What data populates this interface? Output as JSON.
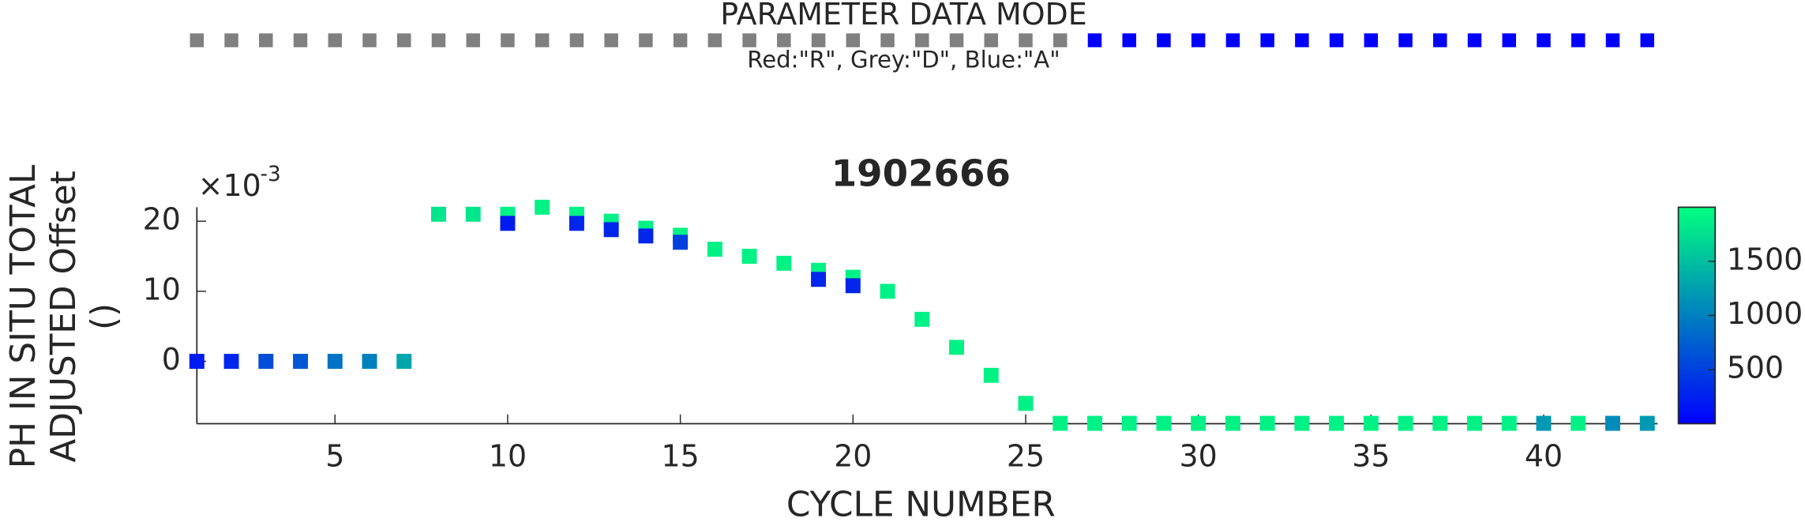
{
  "chart_data": [
    {
      "type": "strip",
      "title": "PARAMETER DATA MODE",
      "subtitle": "Red:\"R\", Grey:\"D\", Blue:\"A\"",
      "x": [
        1,
        2,
        3,
        4,
        5,
        6,
        7,
        8,
        9,
        10,
        11,
        12,
        13,
        14,
        15,
        16,
        17,
        18,
        19,
        20,
        21,
        22,
        23,
        24,
        25,
        26,
        27,
        28,
        29,
        30,
        31,
        32,
        33,
        34,
        35,
        36,
        37,
        38,
        39,
        40,
        41,
        42,
        43
      ],
      "values": [
        "D",
        "D",
        "D",
        "D",
        "D",
        "D",
        "D",
        "D",
        "D",
        "D",
        "D",
        "D",
        "D",
        "D",
        "D",
        "D",
        "D",
        "D",
        "D",
        "D",
        "D",
        "D",
        "D",
        "D",
        "D",
        "D",
        "A",
        "A",
        "A",
        "A",
        "A",
        "A",
        "A",
        "A",
        "A",
        "A",
        "A",
        "A",
        "A",
        "A",
        "A",
        "A",
        "A"
      ],
      "colors": {
        "R": "#ff0000",
        "D": "#808080",
        "A": "#0000ff"
      }
    },
    {
      "type": "scatter",
      "title": "1902666",
      "xlabel": "CYCLE NUMBER",
      "ylabel": [
        "PH IN SITU TOTAL",
        "ADJUSTED Offset",
        "()"
      ],
      "y_scale_label": "×10",
      "y_scale_exponent": "-3",
      "x": [
        1,
        2,
        3,
        4,
        5,
        6,
        7,
        8,
        9,
        10,
        10,
        11,
        12,
        12,
        13,
        13,
        14,
        14,
        15,
        15,
        16,
        17,
        18,
        19,
        19,
        20,
        20,
        21,
        22,
        23,
        24,
        25,
        26,
        27,
        28,
        29,
        30,
        31,
        32,
        33,
        34,
        35,
        36,
        37,
        38,
        39,
        40,
        41,
        42,
        43
      ],
      "values": [
        0,
        0,
        0,
        0,
        0,
        0,
        0,
        21,
        21,
        21,
        19.7,
        22,
        21,
        19.7,
        20,
        18.8,
        19,
        17.9,
        18,
        17,
        16,
        15,
        14,
        13,
        11.7,
        12,
        10.8,
        10,
        6,
        2,
        -2,
        -6,
        -8.85,
        -8.85,
        -8.85,
        -8.85,
        -8.85,
        -8.85,
        -8.85,
        -8.85,
        -8.85,
        -8.85,
        -8.85,
        -8.85,
        -8.85,
        -8.85,
        -8.85,
        -8.85,
        -8.85,
        -8.85
      ],
      "color_values": [
        200,
        300,
        600,
        700,
        900,
        1000,
        1300,
        1800,
        1800,
        1900,
        200,
        1900,
        1900,
        300,
        1900,
        300,
        1900,
        300,
        1900,
        500,
        1900,
        1900,
        1900,
        1900,
        300,
        1900,
        300,
        1900,
        1900,
        1900,
        1900,
        1900,
        1900,
        1900,
        1900,
        1900,
        1900,
        1900,
        1900,
        1900,
        1900,
        1900,
        1900,
        1900,
        1900,
        1900,
        1200,
        1900,
        1100,
        1200
      ],
      "colormap": "winter",
      "clim": [
        0,
        2000
      ],
      "colorbar_ticks": [
        500,
        1000,
        1500
      ],
      "xlim": [
        1,
        43.3
      ],
      "xticks": [
        5,
        10,
        15,
        20,
        25,
        30,
        35,
        40
      ],
      "ylim": [
        -8.9,
        22
      ],
      "yticks": [
        0,
        10,
        20
      ]
    }
  ]
}
